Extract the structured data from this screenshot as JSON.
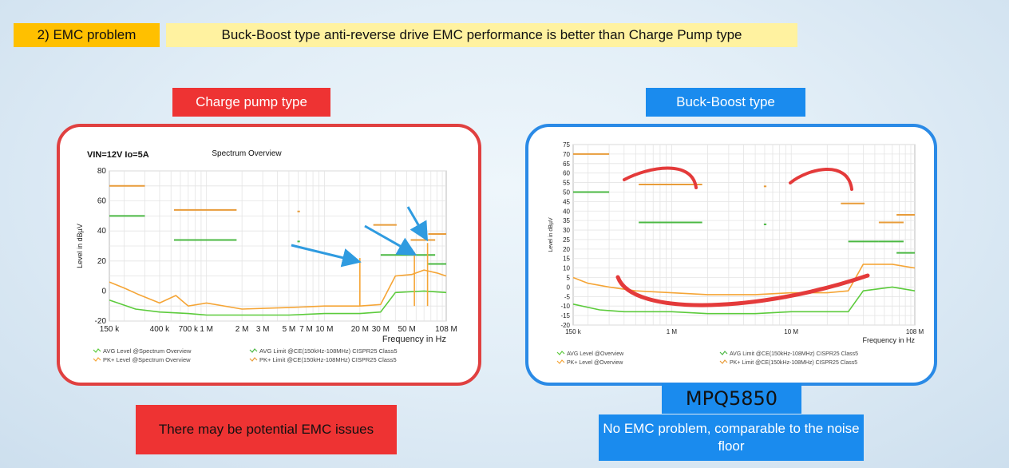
{
  "header": {
    "tag": "2) EMC problem",
    "headline": "Buck-Boost type anti-reverse drive EMC performance is better than Charge Pump type"
  },
  "left": {
    "label": "Charge pump type",
    "note": "There may be potential EMC issues"
  },
  "right": {
    "label": "Buck-Boost type",
    "part": "MPQ5850",
    "note": "No EMC problem, comparable to the noise floor"
  },
  "colors": {
    "red": "#ee3333",
    "blue": "#1a8bee",
    "yellow": "#ffc000",
    "avg": "#5ccb3c",
    "pk": "#f5a536",
    "limit_avg": "#4bb843",
    "limit_pk": "#e89c3a"
  },
  "chart_data": [
    {
      "type": "line",
      "title": "Spectrum Overview",
      "subtitle": "VIN=12V Io=5A",
      "xlabel": "Frequency in Hz",
      "ylabel": "Level in dBµV",
      "xscale": "log",
      "xlim": [
        150000,
        108000000
      ],
      "ylim": [
        -20,
        80
      ],
      "yticks": [
        80,
        60,
        40,
        20,
        0,
        -20
      ],
      "xticks": [
        {
          "v": 150000,
          "label": "150 k"
        },
        {
          "v": 400000,
          "label": "400 k"
        },
        {
          "v": 700000,
          "label": "700 k"
        },
        {
          "v": 1000000,
          "label": "1 M"
        },
        {
          "v": 2000000,
          "label": "2 M"
        },
        {
          "v": 3000000,
          "label": "3 M"
        },
        {
          "v": 5000000,
          "label": "5 M"
        },
        {
          "v": 7000000,
          "label": "7 M"
        },
        {
          "v": 10000000,
          "label": "10 M"
        },
        {
          "v": 20000000,
          "label": "20 M"
        },
        {
          "v": 30000000,
          "label": "30 M"
        },
        {
          "v": 50000000,
          "label": "50 M"
        },
        {
          "v": 108000000,
          "label": "108 M"
        }
      ],
      "grid": true,
      "legend": [
        "AVG Level @Spectrum Overview",
        "PK+ Level @Spectrum Overview",
        "AVG Limit @CE(150kHz-108MHz) CISPR25 Class5",
        "PK+ Limit @CE(150kHz-108MHz) CISPR25 Class5"
      ],
      "limits": {
        "pk": [
          {
            "x": [
              150000,
              300000
            ],
            "y": 70
          },
          {
            "x": [
              530000,
              1800000
            ],
            "y": 54
          },
          {
            "x": [
              5900000,
              6200000
            ],
            "y": 53
          },
          {
            "x": [
              26000000,
              41000000
            ],
            "y": 44
          },
          {
            "x": [
              54000000,
              87000000
            ],
            "y": 34
          },
          {
            "x": [
              76000000,
              108000000
            ],
            "y": 38
          }
        ],
        "avg": [
          {
            "x": [
              150000,
              300000
            ],
            "y": 50
          },
          {
            "x": [
              530000,
              1800000
            ],
            "y": 34
          },
          {
            "x": [
              5900000,
              6200000
            ],
            "y": 33
          },
          {
            "x": [
              30000000,
              54000000
            ],
            "y": 24
          },
          {
            "x": [
              54000000,
              87000000
            ],
            "y": 24
          },
          {
            "x": [
              76000000,
              108000000
            ],
            "y": 18
          }
        ]
      },
      "series": [
        {
          "name": "PK+ Level @Spectrum Overview",
          "x": [
            150000,
            200000,
            260000,
            400000,
            550000,
            700000,
            1000000,
            2000000,
            5000000,
            10000000,
            20000000,
            30000000,
            40000000,
            55000000,
            70000000,
            90000000,
            108000000
          ],
          "y": [
            6,
            2,
            -2,
            -8,
            -3,
            -10,
            -8,
            -12,
            -11,
            -10,
            -10,
            -9,
            10,
            11,
            14,
            12,
            10
          ]
        },
        {
          "name": "AVG Level @Spectrum Overview",
          "x": [
            150000,
            250000,
            400000,
            700000,
            1000000,
            2000000,
            5000000,
            10000000,
            20000000,
            30000000,
            40000000,
            70000000,
            108000000
          ],
          "y": [
            -6,
            -12,
            -14,
            -15,
            -16,
            -16,
            -16,
            -15,
            -15,
            -14,
            -1,
            0,
            -1
          ]
        }
      ],
      "spikes": [
        {
          "x": 20000000,
          "y": 22,
          "series": "PK+"
        },
        {
          "x": 58000000,
          "y": 26,
          "series": "PK+"
        },
        {
          "x": 75000000,
          "y": 32,
          "series": "PK+"
        }
      ]
    },
    {
      "type": "line",
      "title": "",
      "xlabel": "Frequency in Hz",
      "ylabel": "Level in dBµV",
      "xscale": "log",
      "xlim": [
        150000,
        108000000
      ],
      "ylim": [
        -20,
        75
      ],
      "yticks": [
        75,
        70,
        65,
        60,
        55,
        50,
        45,
        40,
        35,
        30,
        25,
        20,
        15,
        10,
        5,
        0,
        -5,
        -10,
        -15,
        -20
      ],
      "xticks": [
        {
          "v": 150000,
          "label": "150 k"
        },
        {
          "v": 1000000,
          "label": "1 M"
        },
        {
          "v": 10000000,
          "label": "10 M"
        },
        {
          "v": 108000000,
          "label": "108 M"
        }
      ],
      "grid": true,
      "legend": [
        "AVG Level @Overview",
        "PK+ Level @Overview",
        "AVG Limit @CE(150kHz-108MHz) CISPR25 Class5",
        "PK+ Limit @CE(150kHz-108MHz) CISPR25 Class5"
      ],
      "limits": {
        "pk": [
          {
            "x": [
              150000,
              300000
            ],
            "y": 70
          },
          {
            "x": [
              530000,
              1800000
            ],
            "y": 54
          },
          {
            "x": [
              5900000,
              6200000
            ],
            "y": 53
          },
          {
            "x": [
              26000000,
              41000000
            ],
            "y": 44
          },
          {
            "x": [
              54000000,
              87000000
            ],
            "y": 34
          },
          {
            "x": [
              76000000,
              108000000
            ],
            "y": 38
          }
        ],
        "avg": [
          {
            "x": [
              150000,
              300000
            ],
            "y": 50
          },
          {
            "x": [
              530000,
              1800000
            ],
            "y": 34
          },
          {
            "x": [
              5900000,
              6200000
            ],
            "y": 33
          },
          {
            "x": [
              30000000,
              54000000
            ],
            "y": 24
          },
          {
            "x": [
              54000000,
              87000000
            ],
            "y": 24
          },
          {
            "x": [
              76000000,
              108000000
            ],
            "y": 18
          }
        ]
      },
      "series": [
        {
          "name": "PK+ Level @Overview",
          "x": [
            150000,
            200000,
            300000,
            500000,
            1000000,
            2000000,
            5000000,
            10000000,
            20000000,
            30000000,
            40000000,
            70000000,
            108000000
          ],
          "y": [
            5,
            2,
            0,
            -2,
            -3,
            -4,
            -4,
            -3,
            -3,
            -2,
            12,
            12,
            10
          ]
        },
        {
          "name": "AVG Level @Overview",
          "x": [
            150000,
            250000,
            400000,
            1000000,
            2000000,
            5000000,
            10000000,
            20000000,
            30000000,
            40000000,
            70000000,
            108000000
          ],
          "y": [
            -9,
            -12,
            -13,
            -13,
            -14,
            -14,
            -13,
            -13,
            -13,
            -2,
            0,
            -2
          ]
        }
      ]
    }
  ]
}
